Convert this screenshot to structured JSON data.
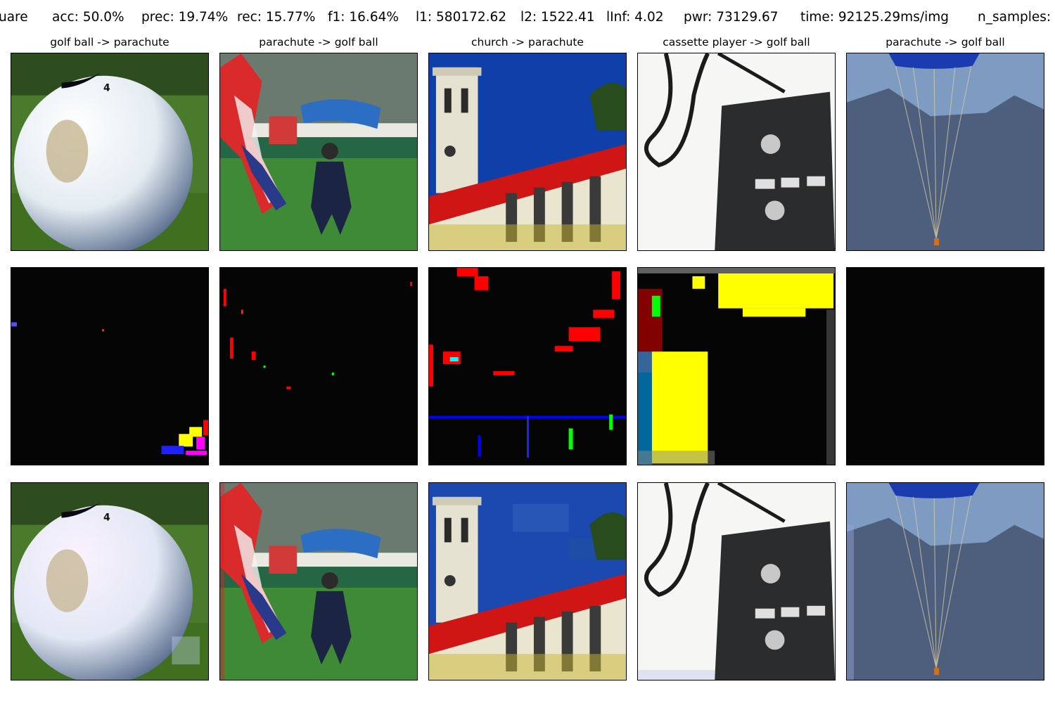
{
  "stats": {
    "method": "uare",
    "acc": "acc: 50.0%",
    "prec": "prec: 19.74%",
    "rec": "rec: 15.77%",
    "f1": "f1: 16.64%",
    "l1": "l1: 580172.62",
    "l2": "l2: 1522.41",
    "linf": "lInf: 4.02",
    "pwr": "pwr: 73129.67",
    "time": "time: 92125.29ms/img",
    "n_samples": "n_samples:"
  },
  "columns": [
    {
      "title": "golf ball -> parachute"
    },
    {
      "title": "parachute -> golf ball"
    },
    {
      "title": "church -> parachute"
    },
    {
      "title": "cassette player -> golf ball"
    },
    {
      "title": "parachute -> golf ball"
    }
  ],
  "colors": {
    "border": "#000000",
    "perturbation_background": "#050505",
    "perturbation_red": "#ff0000",
    "perturbation_yellow": "#ffff00"
  }
}
